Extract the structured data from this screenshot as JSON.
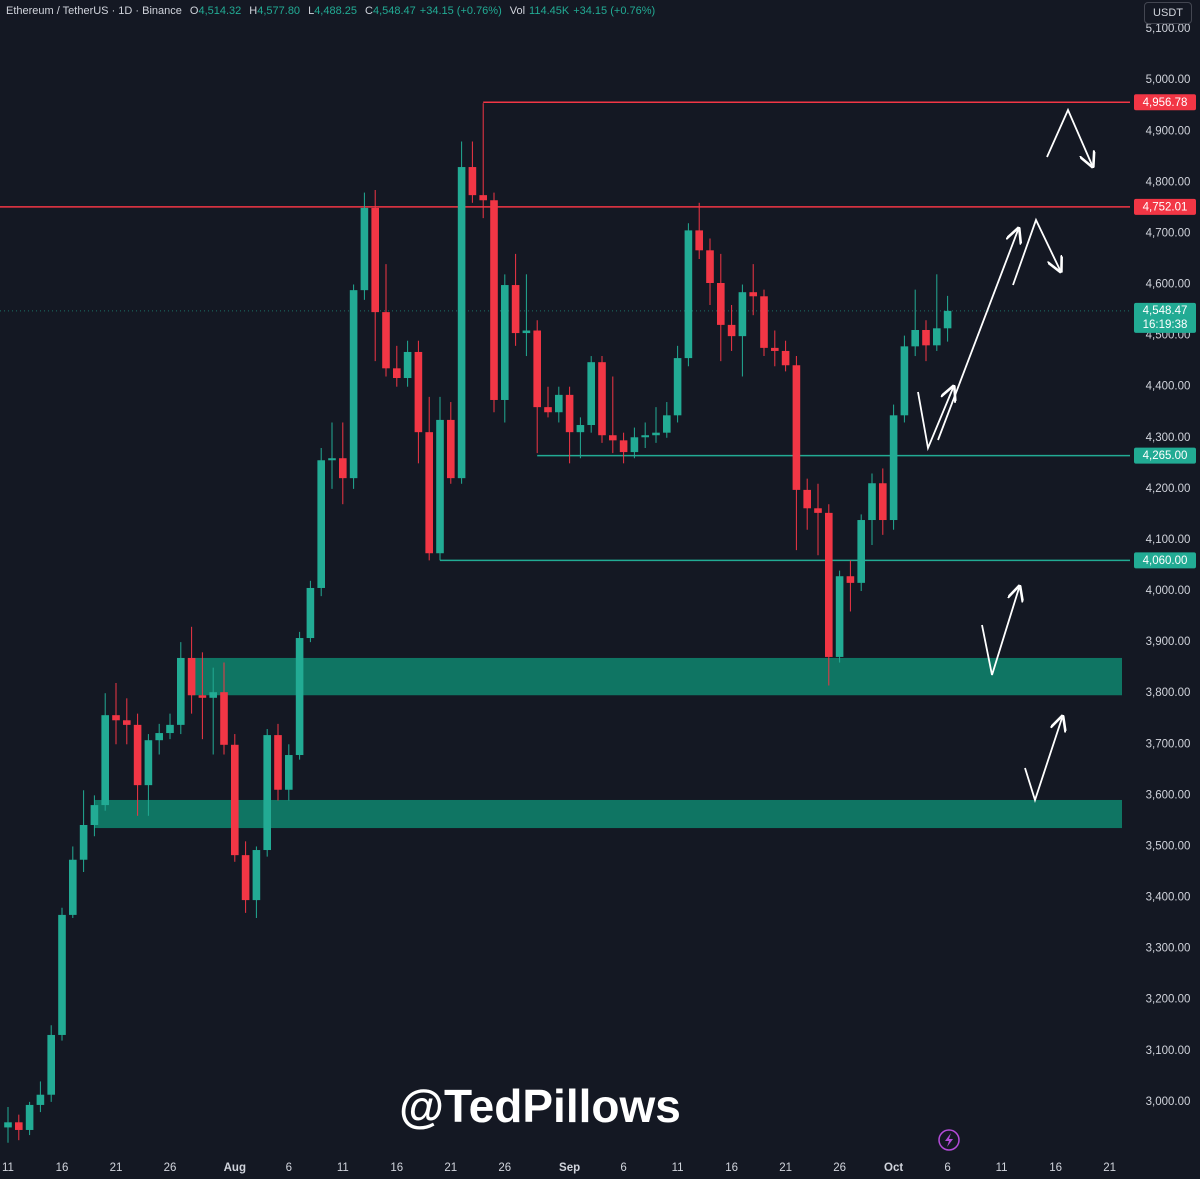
{
  "header": {
    "symbol": "Ethereum / TetherUS · 1D · Binance",
    "fields": [
      {
        "key": "O",
        "value": "4,514.32"
      },
      {
        "key": "H",
        "value": "4,577.80"
      },
      {
        "key": "L",
        "value": "4,488.25"
      },
      {
        "key": "C",
        "value": "4,548.47"
      }
    ],
    "change": "+34.15 (+0.76%)",
    "vol_key": "Vol",
    "vol": "114.45K",
    "vol_change": "+34.15 (+0.76%)"
  },
  "currency": "USDT",
  "watermark": "@TedPillows",
  "chart_data": {
    "type": "candlestick",
    "x": [
      "Jul 11",
      "Jul 12",
      "Jul 13",
      "Jul 14",
      "Jul 15",
      "Jul 16",
      "Jul 17",
      "Jul 18",
      "Jul 19",
      "Jul 20",
      "Jul 21",
      "Jul 22",
      "Jul 23",
      "Jul 24",
      "Jul 25",
      "Jul 26",
      "Jul 27",
      "Jul 28",
      "Jul 29",
      "Jul 30",
      "Jul 31",
      "Aug 1",
      "Aug 2",
      "Aug 3",
      "Aug 4",
      "Aug 5",
      "Aug 6",
      "Aug 7",
      "Aug 8",
      "Aug 9",
      "Aug 10",
      "Aug 11",
      "Aug 12",
      "Aug 13",
      "Aug 14",
      "Aug 15",
      "Aug 16",
      "Aug 17",
      "Aug 18",
      "Aug 19",
      "Aug 20",
      "Aug 21",
      "Aug 22",
      "Aug 23",
      "Aug 24",
      "Aug 25",
      "Aug 26",
      "Aug 27",
      "Aug 28",
      "Aug 29",
      "Aug 30",
      "Aug 31",
      "Sep 1",
      "Sep 2",
      "Sep 3",
      "Sep 4",
      "Sep 5",
      "Sep 6",
      "Sep 7",
      "Sep 8",
      "Sep 9",
      "Sep 10",
      "Sep 11",
      "Sep 12",
      "Sep 13",
      "Sep 14",
      "Sep 15",
      "Sep 16",
      "Sep 17",
      "Sep 18",
      "Sep 19",
      "Sep 20",
      "Sep 21",
      "Sep 22",
      "Sep 23",
      "Sep 24",
      "Sep 25",
      "Sep 26",
      "Sep 27",
      "Sep 28",
      "Sep 29",
      "Sep 30",
      "Oct 1",
      "Oct 2",
      "Oct 3",
      "Oct 4",
      "Oct 5",
      "Oct 6"
    ],
    "open": [
      2950,
      2960,
      2945,
      2994,
      3014,
      3131,
      3366,
      3474,
      3542,
      3581,
      3757,
      3747,
      3738,
      3620,
      3708,
      3722,
      3738,
      3869,
      3796,
      3791,
      3802,
      3699,
      3483,
      3395,
      3493,
      3718,
      3611,
      3679,
      3908,
      4006,
      4256,
      4260,
      4221,
      4589,
      4750,
      4546,
      4436,
      4417,
      4468,
      4311,
      4074,
      4335,
      4221,
      4830,
      4775,
      4765,
      4374,
      4599,
      4505,
      4510,
      4360,
      4350,
      4384,
      4311,
      4325,
      4448,
      4305,
      4295,
      4272,
      4301,
      4305,
      4310,
      4344,
      4456,
      4706,
      4667,
      4603,
      4521,
      4499,
      4585,
      4577,
      4476,
      4470,
      4442,
      4198,
      4162,
      4153,
      3871,
      4029,
      4016,
      4139,
      4211,
      4139,
      4344,
      4479,
      4511,
      4481,
      4514.32
    ],
    "high": [
      2990,
      2975,
      3000,
      3040,
      3150,
      3380,
      3500,
      3610,
      3600,
      3800,
      3820,
      3790,
      3760,
      3720,
      3740,
      3760,
      3900,
      3930,
      3880,
      3850,
      3860,
      3720,
      3510,
      3500,
      3730,
      3740,
      3700,
      3920,
      4020,
      4280,
      4330,
      4330,
      4600,
      4780,
      4785,
      4640,
      4480,
      4490,
      4490,
      4380,
      4380,
      4370,
      4880,
      4880,
      4955,
      4780,
      4620,
      4660,
      4620,
      4530,
      4400,
      4400,
      4400,
      4340,
      4460,
      4460,
      4420,
      4310,
      4320,
      4330,
      4360,
      4370,
      4480,
      4720,
      4760,
      4690,
      4660,
      4560,
      4600,
      4640,
      4590,
      4510,
      4490,
      4460,
      4220,
      4210,
      4170,
      4040,
      4060,
      4150,
      4230,
      4240,
      4365,
      4500,
      4590,
      4530,
      4620,
      4577.8
    ],
    "low": [
      2920,
      2925,
      2935,
      2980,
      3000,
      3120,
      3360,
      3450,
      3520,
      3570,
      3700,
      3700,
      3560,
      3560,
      3680,
      3710,
      3720,
      3760,
      3710,
      3680,
      3680,
      3470,
      3370,
      3360,
      3480,
      3590,
      3590,
      3670,
      3900,
      3990,
      4200,
      4170,
      4200,
      4570,
      4450,
      4420,
      4400,
      4400,
      4250,
      4060,
      4060,
      4210,
      4210,
      4760,
      4730,
      4350,
      4330,
      4480,
      4460,
      4270,
      4340,
      4330,
      4250,
      4260,
      4310,
      4290,
      4270,
      4250,
      4260,
      4280,
      4290,
      4300,
      4330,
      4440,
      4650,
      4560,
      4450,
      4470,
      4420,
      4540,
      4460,
      4440,
      4430,
      4080,
      4120,
      4070,
      3815,
      3860,
      3960,
      4000,
      4090,
      4110,
      4120,
      4330,
      4460,
      4450,
      4470,
      4488.25
    ],
    "close": [
      2960,
      2945,
      2994,
      3014,
      3131,
      3366,
      3474,
      3542,
      3581,
      3757,
      3747,
      3738,
      3620,
      3708,
      3722,
      3738,
      3869,
      3796,
      3791,
      3802,
      3699,
      3483,
      3395,
      3493,
      3718,
      3611,
      3679,
      3908,
      4006,
      4256,
      4260,
      4221,
      4589,
      4750,
      4546,
      4436,
      4417,
      4468,
      4311,
      4074,
      4335,
      4221,
      4830,
      4775,
      4765,
      4374,
      4599,
      4505,
      4510,
      4360,
      4350,
      4384,
      4311,
      4325,
      4448,
      4305,
      4295,
      4272,
      4301,
      4305,
      4310,
      4344,
      4456,
      4706,
      4667,
      4603,
      4521,
      4499,
      4585,
      4577,
      4476,
      4470,
      4442,
      4198,
      4162,
      4153,
      3871,
      4029,
      4016,
      4139,
      4211,
      4139,
      4344,
      4479,
      4511,
      4481,
      4514.32,
      4548.47
    ],
    "up_color": "#22ab94",
    "down_color": "#f23645",
    "ylim": [
      2896,
      5157
    ],
    "yticks": [
      {
        "value": 3000,
        "label": "3,000.00"
      },
      {
        "value": 3100,
        "label": "3,100.00"
      },
      {
        "value": 3200,
        "label": "3,200.00"
      },
      {
        "value": 3300,
        "label": "3,300.00"
      },
      {
        "value": 3400,
        "label": "3,400.00"
      },
      {
        "value": 3500,
        "label": "3,500.00"
      },
      {
        "value": 3600,
        "label": "3,600.00"
      },
      {
        "value": 3700,
        "label": "3,700.00"
      },
      {
        "value": 3800,
        "label": "3,800.00"
      },
      {
        "value": 3900,
        "label": "3,900.00"
      },
      {
        "value": 4000,
        "label": "4,000.00"
      },
      {
        "value": 4100,
        "label": "4,100.00"
      },
      {
        "value": 4200,
        "label": "4,200.00"
      },
      {
        "value": 4300,
        "label": "4,300.00"
      },
      {
        "value": 4400,
        "label": "4,400.00"
      },
      {
        "value": 4500,
        "label": "4,500.00"
      },
      {
        "value": 4600,
        "label": "4,600.00"
      },
      {
        "value": 4700,
        "label": "4,700.00"
      },
      {
        "value": 4800,
        "label": "4,800.00"
      },
      {
        "value": 4900,
        "label": "4,900.00"
      },
      {
        "value": 5000,
        "label": "5,000.00"
      },
      {
        "value": 5100,
        "label": "5,100.00"
      }
    ],
    "xticks": [
      {
        "value": "Jul 11",
        "label": "11"
      },
      {
        "value": "Jul 16",
        "label": "16"
      },
      {
        "value": "Jul 21",
        "label": "21"
      },
      {
        "value": "Jul 26",
        "label": "26"
      },
      {
        "value": "Aug 1",
        "label": "Aug"
      },
      {
        "value": "Aug 6",
        "label": "6"
      },
      {
        "value": "Aug 11",
        "label": "11"
      },
      {
        "value": "Aug 16",
        "label": "16"
      },
      {
        "value": "Aug 21",
        "label": "21"
      },
      {
        "value": "Aug 26",
        "label": "26"
      },
      {
        "value": "Sep 1",
        "label": "Sep"
      },
      {
        "value": "Sep 6",
        "label": "6"
      },
      {
        "value": "Sep 11",
        "label": "11"
      },
      {
        "value": "Sep 16",
        "label": "16"
      },
      {
        "value": "Sep 21",
        "label": "21"
      },
      {
        "value": "Sep 26",
        "label": "26"
      },
      {
        "value": "Oct 1",
        "label": "Oct"
      },
      {
        "value": "Oct 6",
        "label": "6"
      },
      {
        "value": "Oct 11",
        "label": "11"
      },
      {
        "value": "Oct 16",
        "label": "16"
      },
      {
        "value": "Oct 21",
        "label": "21"
      }
    ],
    "levels": [
      {
        "value": 4956.78,
        "label": "4,956.78",
        "color": "#f23645",
        "from": "Aug 24"
      },
      {
        "value": 4752.01,
        "label": "4,752.01",
        "color": "#f23645"
      },
      {
        "value": 4265,
        "label": "4,265.00",
        "color": "#22ab94",
        "from": "Aug 29"
      },
      {
        "value": 4060,
        "label": "4,060.00",
        "color": "#22ab94",
        "from": "Aug 20"
      }
    ],
    "zones": [
      {
        "low": 3796,
        "high": 3869,
        "from": "Jul 28",
        "color": "#0f7a67"
      },
      {
        "low": 3536,
        "high": 3591,
        "from": "Jul 19",
        "color": "#0f7a67"
      }
    ],
    "last": {
      "value": 4548.47,
      "label": "4,548.47",
      "countdown": "16:19:38",
      "color": "#22ab94"
    },
    "grid": false
  }
}
